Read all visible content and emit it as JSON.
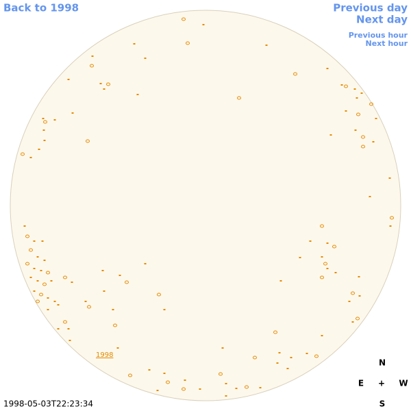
{
  "nav": {
    "back": "Back to 1998",
    "previous_day": "Previous day",
    "next_day": "Next day",
    "previous_hour": "Previous hour",
    "next_hour": "Next hour"
  },
  "disk": {
    "year_link": "1998"
  },
  "compass": {
    "north": "N",
    "east": "E",
    "center": "+",
    "west": "W",
    "south": "S"
  },
  "timestamp": "1998-05-03T22:23:34"
}
